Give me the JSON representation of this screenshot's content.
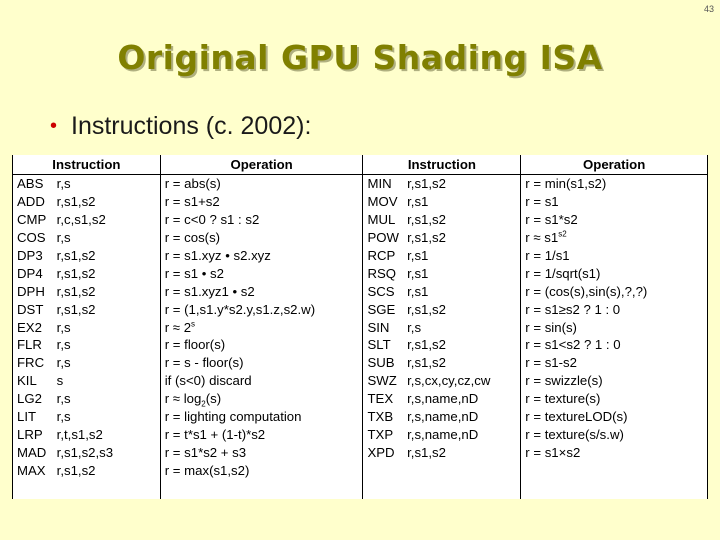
{
  "page_number": "43",
  "title": "Original GPU Shading ISA",
  "bullet": "Instructions (c. 2002):",
  "headers": [
    "Instruction",
    "Operation",
    "Instruction",
    "Operation"
  ],
  "rows": [
    {
      "op1": "ABS",
      "args1": "r,s",
      "oper1": "r = abs(s)",
      "op2": "MIN",
      "args2": "r,s1,s2",
      "oper2": "r = min(s1,s2)"
    },
    {
      "op1": "ADD",
      "args1": "r,s1,s2",
      "oper1": "r = s1+s2",
      "op2": "MOV",
      "args2": "r,s1",
      "oper2": "r = s1"
    },
    {
      "op1": "CMP",
      "args1": "r,c,s1,s2",
      "oper1": "r = c<0 ? s1 : s2",
      "op2": "MUL",
      "args2": "r,s1,s2",
      "oper2": "r = s1*s2"
    },
    {
      "op1": "COS",
      "args1": "r,s",
      "oper1": "r = cos(s)",
      "op2": "POW",
      "args2": "r,s1,s2",
      "oper2": "r ≈ s1",
      "oper2_sup": "s2"
    },
    {
      "op1": "DP3",
      "args1": "r,s1,s2",
      "oper1": "r = s1.xyz • s2.xyz",
      "op2": "RCP",
      "args2": "r,s1",
      "oper2": "r = 1/s1"
    },
    {
      "op1": "DP4",
      "args1": "r,s1,s2",
      "oper1": "r = s1 • s2",
      "op2": "RSQ",
      "args2": "r,s1",
      "oper2": "r = 1/sqrt(s1)"
    },
    {
      "op1": "DPH",
      "args1": "r,s1,s2",
      "oper1": "r = s1.xyz1 • s2",
      "op2": "SCS",
      "args2": "r,s1",
      "oper2": "r = (cos(s),sin(s),?,?)"
    },
    {
      "op1": "DST",
      "args1": "r,s1,s2",
      "oper1": "r = (1,s1.y*s2.y,s1.z,s2.w)",
      "op2": "SGE",
      "args2": "r,s1,s2",
      "oper2": "r = s1≥s2 ? 1 : 0"
    },
    {
      "op1": "EX2",
      "args1": "r,s",
      "oper1": "r ≈ 2",
      "oper1_sup": "s",
      "op2": "SIN",
      "args2": "r,s",
      "oper2": "r = sin(s)"
    },
    {
      "op1": "FLR",
      "args1": "r,s",
      "oper1": "r = floor(s)",
      "op2": "SLT",
      "args2": "r,s1,s2",
      "oper2": "r = s1<s2 ? 1 : 0"
    },
    {
      "op1": "FRC",
      "args1": "r,s",
      "oper1": "r = s - floor(s)",
      "op2": "SUB",
      "args2": "r,s1,s2",
      "oper2": "r = s1-s2"
    },
    {
      "op1": "KIL",
      "args1": "s",
      "oper1": "if (s<0) discard",
      "op2": "SWZ",
      "args2": "r,s,cx,cy,cz,cw",
      "oper2": "r = swizzle(s)"
    },
    {
      "op1": "LG2",
      "args1": "r,s",
      "oper1": "r ≈ log",
      "oper1_sub": "2",
      "oper1_tail": "(s)",
      "op2": "TEX",
      "args2": "r,s,name,nD",
      "oper2": "r = texture(s)"
    },
    {
      "op1": "LIT",
      "args1": "r,s",
      "oper1": "r = lighting computation",
      "op2": "TXB",
      "args2": "r,s,name,nD",
      "oper2": "r = textureLOD(s)"
    },
    {
      "op1": "LRP",
      "args1": "r,t,s1,s2",
      "oper1": "r = t*s1 + (1-t)*s2",
      "op2": "TXP",
      "args2": "r,s,name,nD",
      "oper2": "r = texture(s/s.w)"
    },
    {
      "op1": "MAD",
      "args1": "r,s1,s2,s3",
      "oper1": "r = s1*s2 + s3",
      "op2": "XPD",
      "args2": "r,s1,s2",
      "oper2": "r = s1×s2"
    },
    {
      "op1": "MAX",
      "args1": "r,s1,s2",
      "oper1": "r = max(s1,s2)",
      "op2": "",
      "args2": "",
      "oper2": ""
    }
  ],
  "colors": {
    "background": "#ffffcc",
    "title": "#808000",
    "bullet": "#cc0000"
  }
}
